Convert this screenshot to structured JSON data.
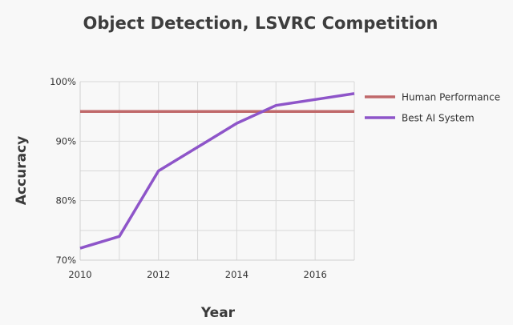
{
  "chart_data": {
    "type": "line",
    "title": "Object Detection, LSVRC Competition",
    "xlabel": "Year",
    "ylabel": "Accuracy",
    "xlim": [
      2010,
      2017
    ],
    "ylim": [
      70,
      100
    ],
    "x_ticks": [
      2010,
      2012,
      2014,
      2016
    ],
    "x_tick_labels": [
      "2010",
      "2012",
      "2014",
      "2016"
    ],
    "y_ticks": [
      70,
      80,
      90,
      100
    ],
    "y_tick_labels": [
      "70%",
      "80%",
      "90%",
      "100%"
    ],
    "grid": true,
    "legend_position": "right",
    "series": [
      {
        "name": "Human Performance",
        "color": "#c0696a",
        "x": [
          2010,
          2017
        ],
        "y": [
          95,
          95
        ]
      },
      {
        "name": "Best AI System",
        "color": "#8e55c9",
        "x": [
          2010,
          2011,
          2012,
          2013,
          2014,
          2015,
          2016,
          2017
        ],
        "y": [
          72,
          74,
          85,
          89,
          93,
          96,
          97,
          98
        ]
      }
    ]
  }
}
